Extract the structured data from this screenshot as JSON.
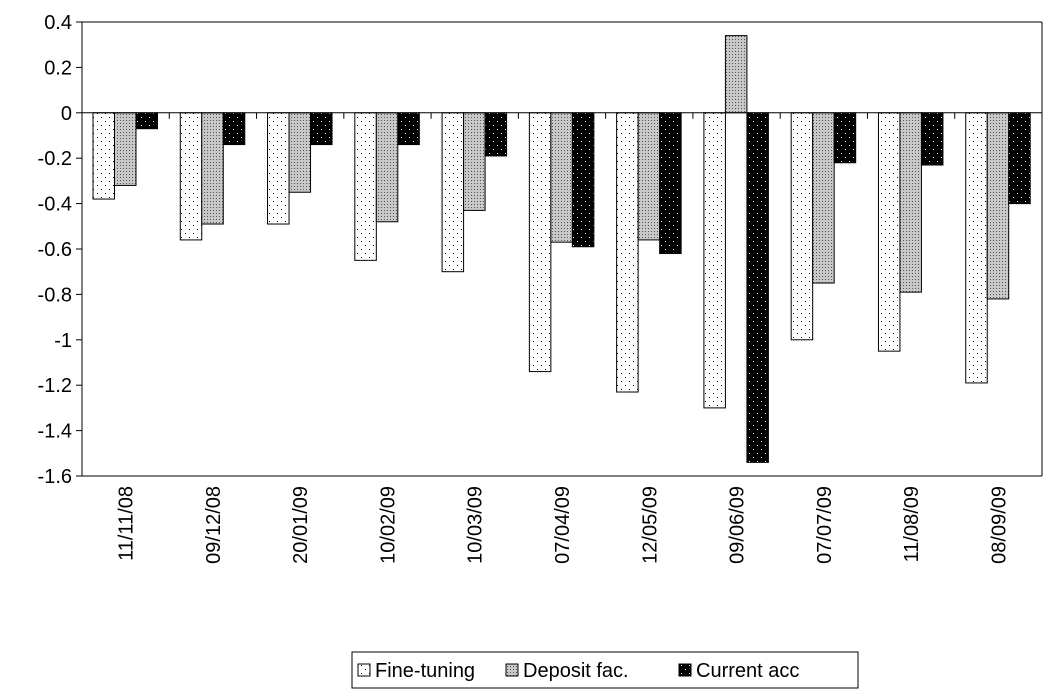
{
  "chart_data": {
    "type": "bar",
    "categories": [
      "11/11/08",
      "09/12/08",
      "20/01/09",
      "10/02/09",
      "10/03/09",
      "07/04/09",
      "12/05/09",
      "09/06/09",
      "07/07/09",
      "11/08/09",
      "08/09/09"
    ],
    "series": [
      {
        "name": "Fine-tuning",
        "color": "#ffffff",
        "values": [
          -0.38,
          -0.56,
          -0.49,
          -0.65,
          -0.7,
          -1.14,
          -1.23,
          -1.3,
          -1.0,
          -1.05,
          -1.19
        ]
      },
      {
        "name": "Deposit fac.",
        "color": "#c8c8c8",
        "values": [
          -0.32,
          -0.49,
          -0.35,
          -0.48,
          -0.43,
          -0.57,
          -0.56,
          0.34,
          -0.75,
          -0.79,
          -0.82
        ]
      },
      {
        "name": "Current acc",
        "color": "#000000",
        "values": [
          -0.07,
          -0.14,
          -0.14,
          -0.14,
          -0.19,
          -0.59,
          -0.62,
          -1.54,
          -0.22,
          -0.23,
          -0.4
        ]
      }
    ],
    "ylim": [
      -1.6,
      0.4
    ],
    "yticks": [
      0.4,
      0.2,
      0,
      -0.2,
      -0.4,
      -0.6,
      -0.8,
      -1,
      -1.2,
      -1.4,
      -1.6
    ],
    "grid": false,
    "legend": "bottom"
  }
}
